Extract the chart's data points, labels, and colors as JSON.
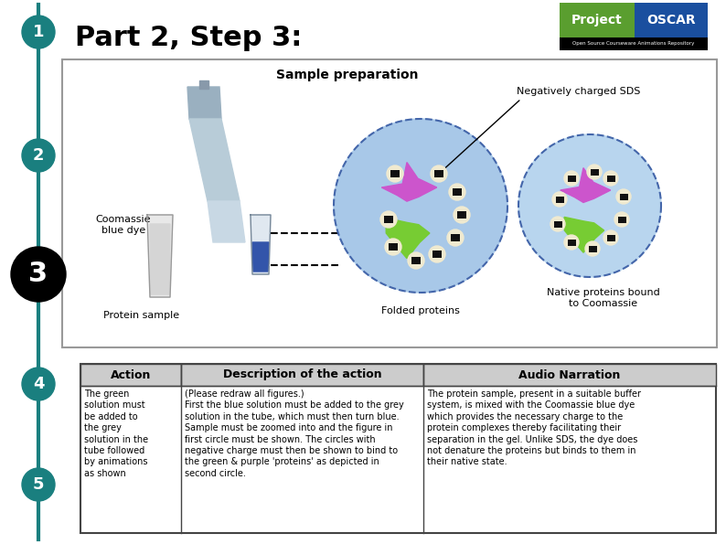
{
  "title": "Part 2, Step 3:",
  "bg_color": "#ffffff",
  "teal_color": "#1a7f7f",
  "step_numbers": [
    "1",
    "2",
    "3",
    "4",
    "5"
  ],
  "diagram_title": "Sample preparation",
  "neg_charged_label": "Negatively charged SDS",
  "coomassie_label": "Coomassie\nblue dye",
  "protein_sample_label": "Protein sample",
  "folded_proteins_label": "Folded proteins",
  "native_proteins_label": "Native proteins bound\nto Coomassie",
  "circle1_color": "#a8c8e8",
  "circle2_color": "#b8d5ee",
  "protein_purple": "#cc55cc",
  "protein_green": "#77cc33",
  "sds_dark": "#111111",
  "cream_color": "#f0ead0",
  "table_header_bg": "#cccccc",
  "table_border": "#444444",
  "project_green": "#5a9e2f",
  "project_blue": "#1a4f9f",
  "action_text": "The green\nsolution must\nbe added to\nthe grey\nsolution in the\ntube followed\nby animations\nas shown",
  "description_text": "(Please redraw all figures.)\nFirst the blue solution must be added to the grey\nsolution in the tube, which must then turn blue.\nSample must be zoomed into and the figure in\nfirst circle must be shown. The circles with\nnegative charge must then be shown to bind to\nthe green & purple 'proteins' as depicted in\nsecond circle.",
  "narration_text": "The protein sample, present in a suitable buffer\nsystem, is mixed with the Coomassie blue dye\nwhich provides the necessary charge to the\nprotein complexes thereby facilitating their\nseparation in the gel. Unlike SDS, the dye does\nnot denature the proteins but binds to them in\ntheir native state."
}
